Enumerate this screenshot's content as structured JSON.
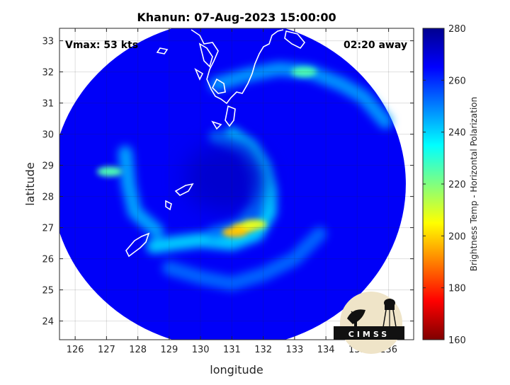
{
  "chart_data": {
    "type": "heatmap",
    "title": "Khanun: 07-Aug-2023 15:00:00",
    "annotations": {
      "vmax": "Vmax: 53 kts",
      "time_away": "02:20 away"
    },
    "xlabel": "longitude",
    "ylabel": "latitude",
    "xlim": [
      125.5,
      136.8
    ],
    "ylim": [
      23.4,
      33.4
    ],
    "xticks": [
      126,
      127,
      128,
      129,
      130,
      131,
      132,
      133,
      134,
      135,
      136
    ],
    "yticks": [
      24,
      25,
      26,
      27,
      28,
      29,
      30,
      31,
      32,
      33
    ],
    "grid": true,
    "colorbar": {
      "label": "Brightness Temp - Horizontal Polarization",
      "range": [
        160,
        280
      ],
      "ticks": [
        160,
        180,
        200,
        220,
        240,
        260,
        280
      ],
      "colormap": [
        "#7f0000",
        "#ff0000",
        "#ff8000",
        "#ffff00",
        "#80ff80",
        "#00ffff",
        "#0080ff",
        "#0000ff",
        "#00008f"
      ]
    },
    "swath": {
      "center": [
        130.9,
        28.4
      ],
      "background_value": 266,
      "eye": {
        "center": [
          130.8,
          28.6
        ],
        "value": 272
      }
    },
    "features": [
      {
        "name": "main-rainband",
        "value": 238,
        "points": [
          [
            131.0,
            30.0
          ],
          [
            131.6,
            29.6
          ],
          [
            132.0,
            29.0
          ],
          [
            132.2,
            28.2
          ],
          [
            132.2,
            27.5
          ],
          [
            131.8,
            26.8
          ],
          [
            131.0,
            26.5
          ],
          [
            130.0,
            26.6
          ],
          [
            129.2,
            26.5
          ],
          [
            128.5,
            26.4
          ]
        ]
      },
      {
        "name": "inner-band",
        "value": 250,
        "points": [
          [
            130.5,
            29.9
          ],
          [
            131.4,
            29.5
          ],
          [
            131.7,
            28.7
          ],
          [
            131.8,
            27.8
          ],
          [
            131.3,
            27.1
          ],
          [
            130.4,
            26.8
          ]
        ]
      },
      {
        "name": "outer-band",
        "value": 252,
        "points": [
          [
            129.0,
            25.7
          ],
          [
            130.0,
            25.4
          ],
          [
            131.0,
            25.2
          ],
          [
            132.0,
            25.5
          ],
          [
            133.0,
            26.0
          ],
          [
            133.8,
            26.8
          ]
        ]
      },
      {
        "name": "northern-band",
        "value": 246,
        "points": [
          [
            130.5,
            31.6
          ],
          [
            131.5,
            31.9
          ],
          [
            132.5,
            32.1
          ],
          [
            133.5,
            32.0
          ],
          [
            134.5,
            31.6
          ],
          [
            135.2,
            31.2
          ],
          [
            135.9,
            30.4
          ]
        ]
      },
      {
        "name": "western-band",
        "value": 244,
        "points": [
          [
            127.6,
            29.4
          ],
          [
            127.7,
            28.4
          ],
          [
            127.9,
            27.5
          ],
          [
            128.6,
            26.9
          ]
        ]
      }
    ],
    "cold_spots": [
      {
        "center": [
          131.4,
          27.0
        ],
        "value": 202
      },
      {
        "center": [
          131.1,
          26.85
        ],
        "value": 198
      },
      {
        "center": [
          131.7,
          27.1
        ],
        "value": 208
      },
      {
        "center": [
          133.3,
          32.0
        ],
        "value": 226
      },
      {
        "center": [
          127.1,
          28.8
        ],
        "value": 226
      }
    ]
  },
  "logo": {
    "text": "CIMSS"
  }
}
